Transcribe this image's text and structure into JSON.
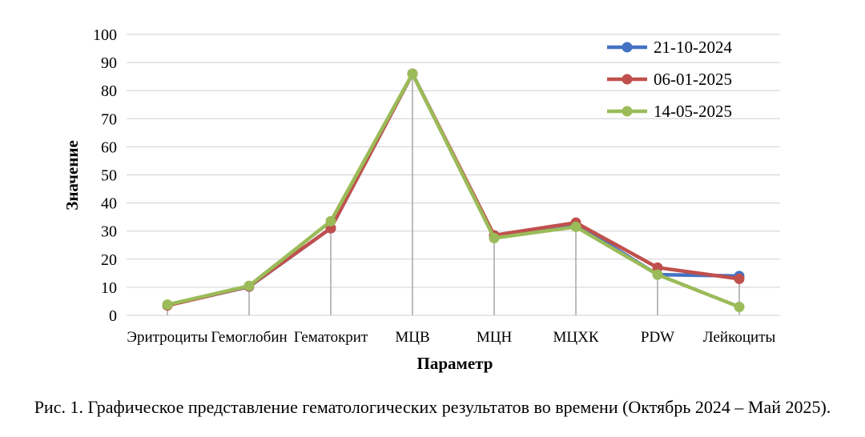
{
  "caption": "Рис. 1. Графическое представление гематологических результатов во времени (Октябрь 2024 – Май 2025).",
  "chart_data": {
    "type": "line",
    "xlabel": "Параметр",
    "ylabel": "Значение",
    "ylim": [
      0,
      100
    ],
    "ytick_step": 10,
    "grid": true,
    "legend_position": "top-right",
    "categories": [
      "Эритроциты",
      "Гемоглобин",
      "Гематокрит",
      "МЦВ",
      "МЦН",
      "МЦХК",
      "PDW",
      "Лейкоциты"
    ],
    "series": [
      {
        "name": "21-10-2024",
        "color": "#4472C4",
        "values": [
          3.6,
          10.2,
          31,
          86,
          28,
          32.5,
          14.5,
          14
        ]
      },
      {
        "name": "06-01-2025",
        "color": "#C0504D",
        "values": [
          3.5,
          10.3,
          31,
          86,
          28.5,
          33,
          17,
          13
        ]
      },
      {
        "name": "14-05-2025",
        "color": "#9BBB59",
        "values": [
          3.8,
          10.5,
          33.5,
          86,
          27.5,
          31.5,
          14.5,
          3
        ]
      }
    ]
  }
}
